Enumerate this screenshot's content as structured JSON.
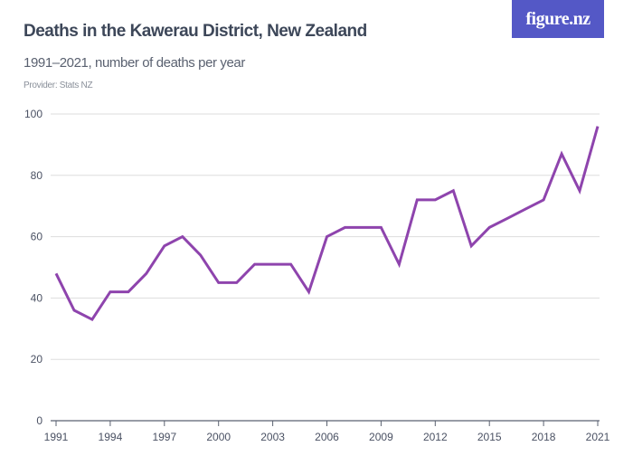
{
  "header": {
    "title": "Deaths in the Kawerau District, New Zealand",
    "subtitle": "1991–2021, number of deaths per year",
    "provider": "Provider: Stats NZ",
    "logo": "figure.nz"
  },
  "colors": {
    "line": "#8e44ad",
    "logo_bg": "#5458c6",
    "grid": "#dddddd"
  },
  "chart_data": {
    "type": "line",
    "title": "Deaths in the Kawerau District, New Zealand",
    "subtitle": "1991–2021, number of deaths per year",
    "x": [
      1991,
      1992,
      1993,
      1994,
      1995,
      1996,
      1997,
      1998,
      1999,
      2000,
      2001,
      2002,
      2003,
      2004,
      2005,
      2006,
      2007,
      2008,
      2009,
      2010,
      2011,
      2012,
      2013,
      2014,
      2015,
      2016,
      2017,
      2018,
      2019,
      2020,
      2021
    ],
    "values": [
      48,
      36,
      33,
      42,
      42,
      48,
      57,
      60,
      54,
      45,
      45,
      51,
      51,
      51,
      42,
      60,
      63,
      63,
      63,
      51,
      72,
      72,
      75,
      57,
      63,
      66,
      69,
      72,
      87,
      75,
      96
    ],
    "xlim": [
      1991,
      2021
    ],
    "ylim": [
      0,
      100
    ],
    "xticks": [
      "1991",
      "1994",
      "1997",
      "2000",
      "2003",
      "2006",
      "2009",
      "2012",
      "2015",
      "2018",
      "2021"
    ],
    "yticks": [
      "0",
      "20",
      "40",
      "60",
      "80",
      "100"
    ],
    "grid": true,
    "legend": "none"
  }
}
